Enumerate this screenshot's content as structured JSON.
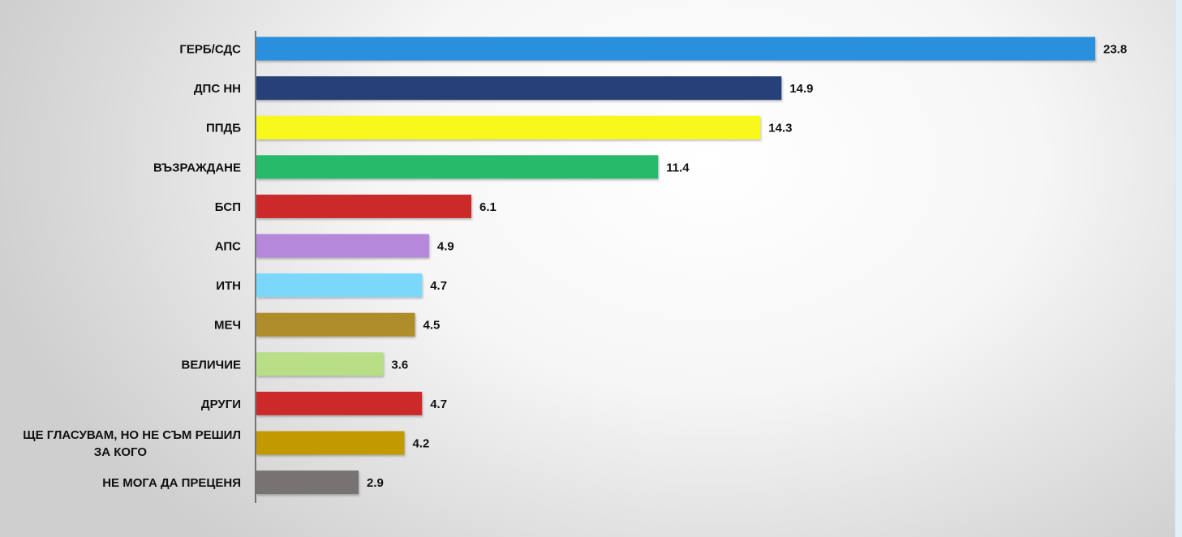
{
  "chart_data": {
    "type": "bar",
    "orientation": "horizontal",
    "categories": [
      "ГЕРБ/СДС",
      "ДПС НН",
      "ППДБ",
      "ВЪЗРАЖДАНЕ",
      "БСП",
      "АПС",
      "ИТН",
      "МЕЧ",
      "ВЕЛИЧИЕ",
      "ДРУГИ",
      [
        "ЩЕ ГЛАСУВАМ, НО НЕ СЪМ РЕШИЛ",
        "ЗА КОГО"
      ],
      "НЕ МОГА ДА ПРЕЦЕНЯ"
    ],
    "values": [
      23.8,
      14.9,
      14.3,
      11.4,
      6.1,
      4.9,
      4.7,
      4.5,
      3.6,
      4.7,
      4.2,
      2.9
    ],
    "value_labels": [
      "23.8",
      "14.9",
      "14.3",
      "11.4",
      "6.1",
      "4.9",
      "4.7",
      "4.5",
      "3.6",
      "4.7",
      "4.2",
      "2.9"
    ],
    "colors": [
      "#2a8fdc",
      "#283f78",
      "#f8f81f",
      "#27bb6a",
      "#cc2a2a",
      "#b688dc",
      "#7cd8fa",
      "#ae8d2a",
      "#b8de86",
      "#cc2a2a",
      "#c19a06",
      "#777373"
    ],
    "title": "",
    "xlabel": "",
    "ylabel": "",
    "xlim": [
      0,
      23.8
    ],
    "grid": false,
    "legend": "none"
  }
}
